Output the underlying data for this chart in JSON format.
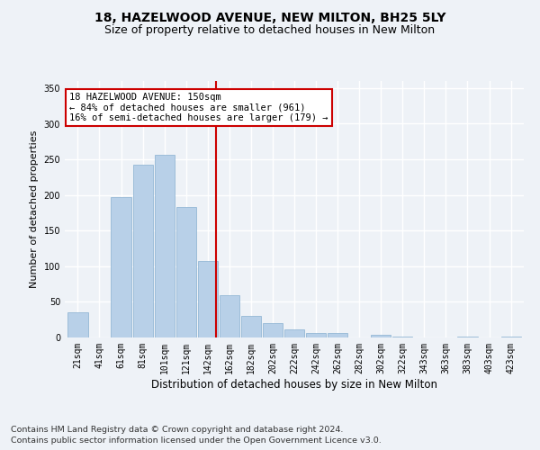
{
  "title": "18, HAZELWOOD AVENUE, NEW MILTON, BH25 5LY",
  "subtitle": "Size of property relative to detached houses in New Milton",
  "xlabel": "Distribution of detached houses by size in New Milton",
  "ylabel": "Number of detached properties",
  "categories": [
    "21sqm",
    "41sqm",
    "61sqm",
    "81sqm",
    "101sqm",
    "121sqm",
    "142sqm",
    "162sqm",
    "182sqm",
    "202sqm",
    "222sqm",
    "242sqm",
    "262sqm",
    "282sqm",
    "302sqm",
    "322sqm",
    "343sqm",
    "363sqm",
    "383sqm",
    "403sqm",
    "423sqm"
  ],
  "values": [
    35,
    0,
    197,
    242,
    256,
    183,
    107,
    60,
    30,
    20,
    11,
    6,
    6,
    0,
    4,
    1,
    0,
    0,
    1,
    0,
    1
  ],
  "bar_color": "#b8d0e8",
  "bar_edge_color": "#88b0d0",
  "vline_color": "#cc0000",
  "annotation_text": "18 HAZELWOOD AVENUE: 150sqm\n← 84% of detached houses are smaller (961)\n16% of semi-detached houses are larger (179) →",
  "annotation_box_color": "#ffffff",
  "annotation_box_edge": "#cc0000",
  "ylim": [
    0,
    360
  ],
  "yticks": [
    0,
    50,
    100,
    150,
    200,
    250,
    300,
    350
  ],
  "footer1": "Contains HM Land Registry data © Crown copyright and database right 2024.",
  "footer2": "Contains public sector information licensed under the Open Government Licence v3.0.",
  "bg_color": "#eef2f7",
  "grid_color": "#ffffff",
  "title_fontsize": 10,
  "subtitle_fontsize": 9,
  "tick_fontsize": 7,
  "ylabel_fontsize": 8,
  "xlabel_fontsize": 8.5,
  "footer_fontsize": 6.8,
  "annotation_fontsize": 7.5
}
